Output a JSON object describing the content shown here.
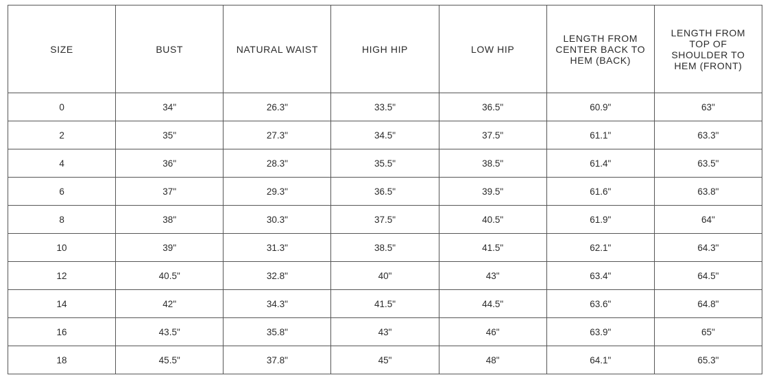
{
  "headers": [
    "SIZE",
    "BUST",
    "NATURAL WAIST",
    "HIGH HIP",
    "LOW HIP",
    "LENGTH FROM CENTER BACK TO HEM (BACK)",
    "LENGTH FROM TOP OF SHOULDER TO HEM (FRONT)"
  ],
  "rows": [
    [
      "0",
      "34\"",
      "26.3\"",
      "33.5\"",
      "36.5\"",
      "60.9\"",
      "63\""
    ],
    [
      "2",
      "35\"",
      "27.3\"",
      "34.5\"",
      "37.5\"",
      "61.1\"",
      "63.3\""
    ],
    [
      "4",
      "36\"",
      "28.3\"",
      "35.5\"",
      "38.5\"",
      "61.4\"",
      "63.5\""
    ],
    [
      "6",
      "37\"",
      "29.3\"",
      "36.5\"",
      "39.5\"",
      "61.6\"",
      "63.8\""
    ],
    [
      "8",
      "38\"",
      "30.3\"",
      "37.5\"",
      "40.5\"",
      "61.9\"",
      "64\""
    ],
    [
      "10",
      "39\"",
      "31.3\"",
      "38.5\"",
      "41.5\"",
      "62.1\"",
      "64.3\""
    ],
    [
      "12",
      "40.5\"",
      "32.8\"",
      "40\"",
      "43\"",
      "63.4\"",
      "64.5\""
    ],
    [
      "14",
      "42\"",
      "34.3\"",
      "41.5\"",
      "44.5\"",
      "63.6\"",
      "64.8\""
    ],
    [
      "16",
      "43.5\"",
      "35.8\"",
      "43\"",
      "46\"",
      "63.9\"",
      "65\""
    ],
    [
      "18",
      "45.5\"",
      "37.8\"",
      "45\"",
      "48\"",
      "64.1\"",
      "65.3\""
    ]
  ]
}
